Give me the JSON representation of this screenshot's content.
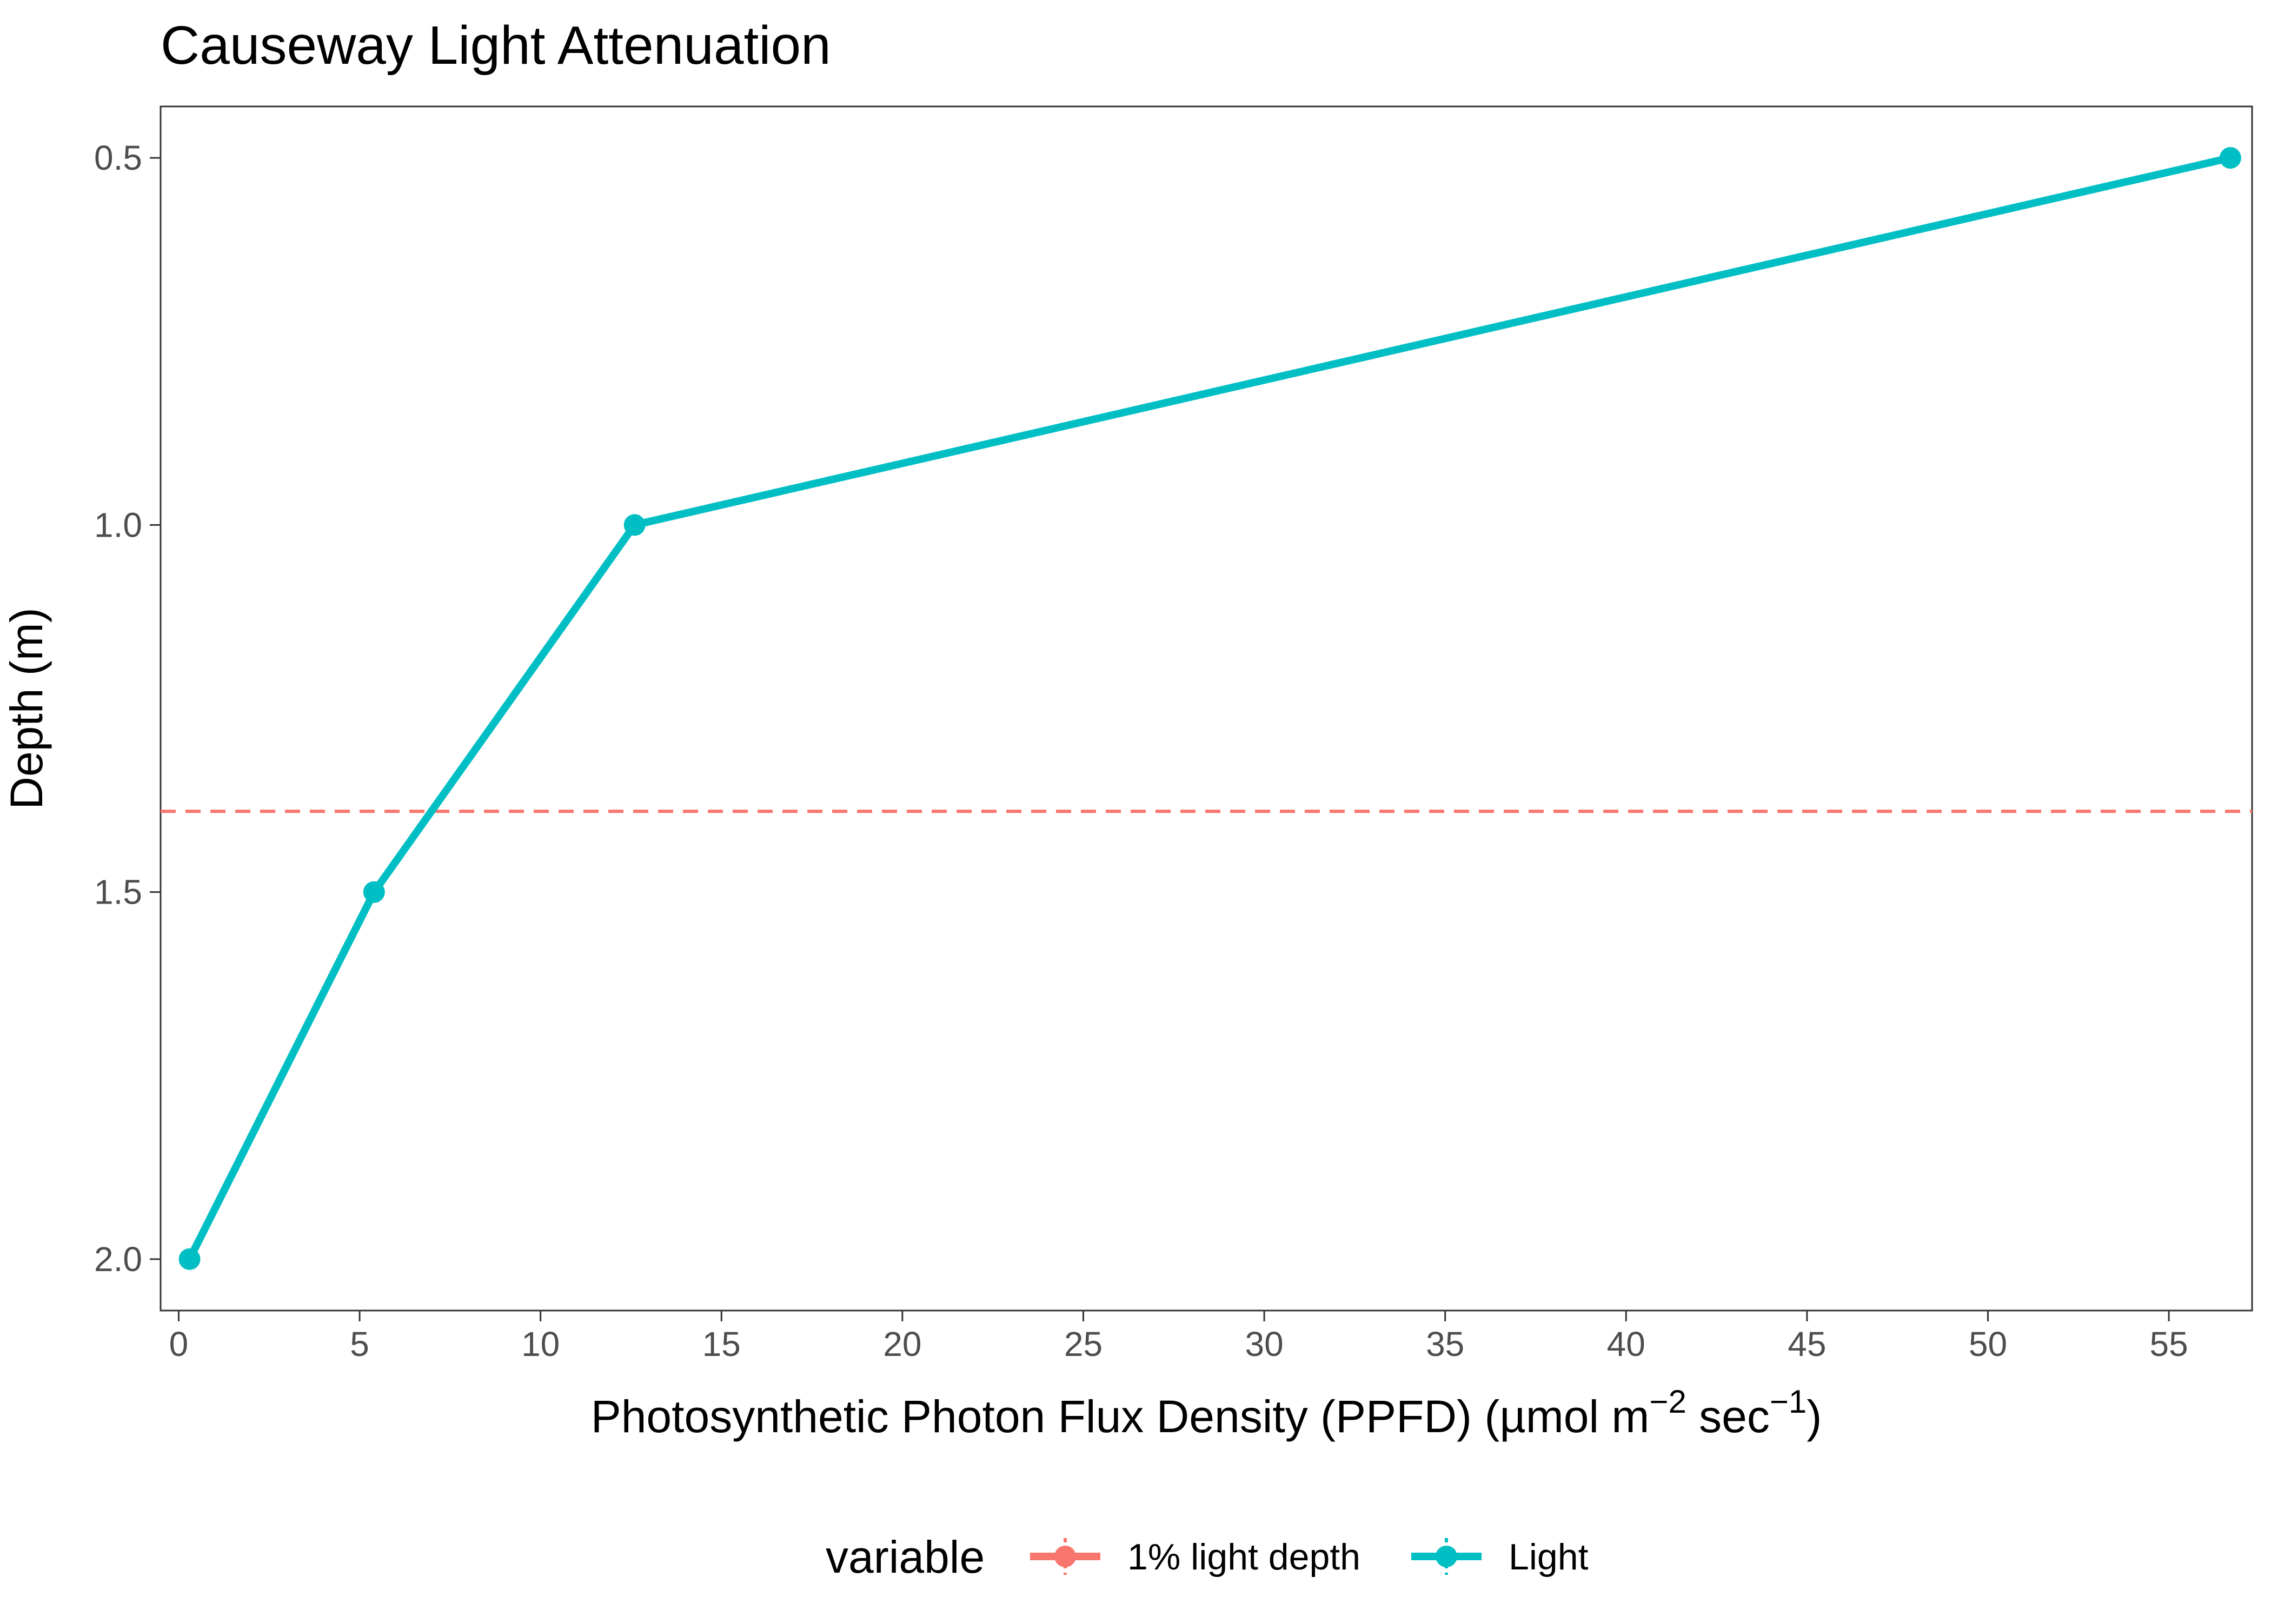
{
  "chart_data": {
    "type": "line",
    "title": "Causeway Light Attenuation",
    "xlabel": {
      "main": "Photosynthetic Photon Flux Density (PPFD) (µmol m",
      "sup1": "−2",
      "mid": " sec",
      "sup2": "−1",
      "end": ")"
    },
    "ylabel": "Depth (m)",
    "xlim": [
      -0.5,
      57.3
    ],
    "ylim": [
      2.07,
      0.43
    ],
    "y_reversed": true,
    "x_ticks": [
      0,
      5,
      10,
      15,
      20,
      25,
      30,
      35,
      40,
      45,
      50,
      55
    ],
    "x_tick_labels": [
      "0",
      "5",
      "10",
      "15",
      "20",
      "25",
      "30",
      "35",
      "40",
      "45",
      "50",
      "55"
    ],
    "y_ticks": [
      0.5,
      1.0,
      1.5,
      2.0
    ],
    "y_tick_labels": [
      "0.5",
      "1.0",
      "1.5",
      "2.0"
    ],
    "grid": false,
    "legend_position": "bottom",
    "legend_title": "variable",
    "series": [
      {
        "name": "Light",
        "color": "#00BFC4",
        "style": "line+points",
        "x": [
          56.7,
          12.6,
          5.4,
          0.3
        ],
        "y": [
          0.5,
          1.0,
          1.5,
          2.0
        ]
      },
      {
        "name": "1% light depth",
        "color": "#F8766D",
        "style": "dashed-hline",
        "y": 1.39
      }
    ]
  }
}
